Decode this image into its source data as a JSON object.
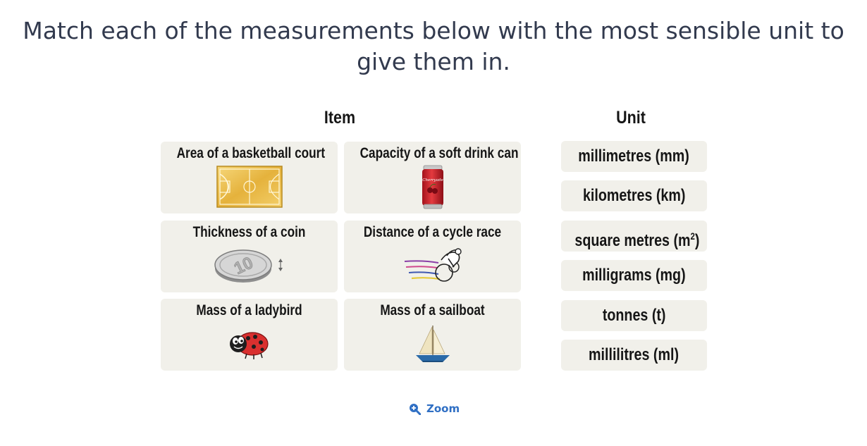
{
  "question": {
    "line1": "Match each of the measurements below with the most sensible unit to",
    "line2": "give them in."
  },
  "headers": {
    "item": "Item",
    "unit": "Unit"
  },
  "items": [
    {
      "label": "Area of a basketball court",
      "icon": "basketball-court-icon"
    },
    {
      "label": "Capacity of a soft drink can",
      "icon": "soft-drink-can-icon",
      "can_text": "Cherryade"
    },
    {
      "label": "Thickness of a coin",
      "icon": "coin-icon",
      "coin_value": "10"
    },
    {
      "label": "Distance of a cycle race",
      "icon": "cyclist-icon"
    },
    {
      "label": "Mass of a ladybird",
      "icon": "ladybird-icon"
    },
    {
      "label": "Mass of a sailboat",
      "icon": "sailboat-icon"
    }
  ],
  "units": [
    {
      "label": "millimetres (mm)"
    },
    {
      "label": "kilometres (km)"
    },
    {
      "label": "square metres (m",
      "sup": "2",
      "suffix": ")"
    },
    {
      "label": "milligrams (mg)"
    },
    {
      "label": "tonnes (t)"
    },
    {
      "label": "millilitres (ml)"
    }
  ],
  "zoom": {
    "label": "Zoom",
    "icon": "zoom-in-icon"
  },
  "colors": {
    "accent": "#2f6fc4",
    "card": "#f1f0ea",
    "text": "#323a4e"
  }
}
